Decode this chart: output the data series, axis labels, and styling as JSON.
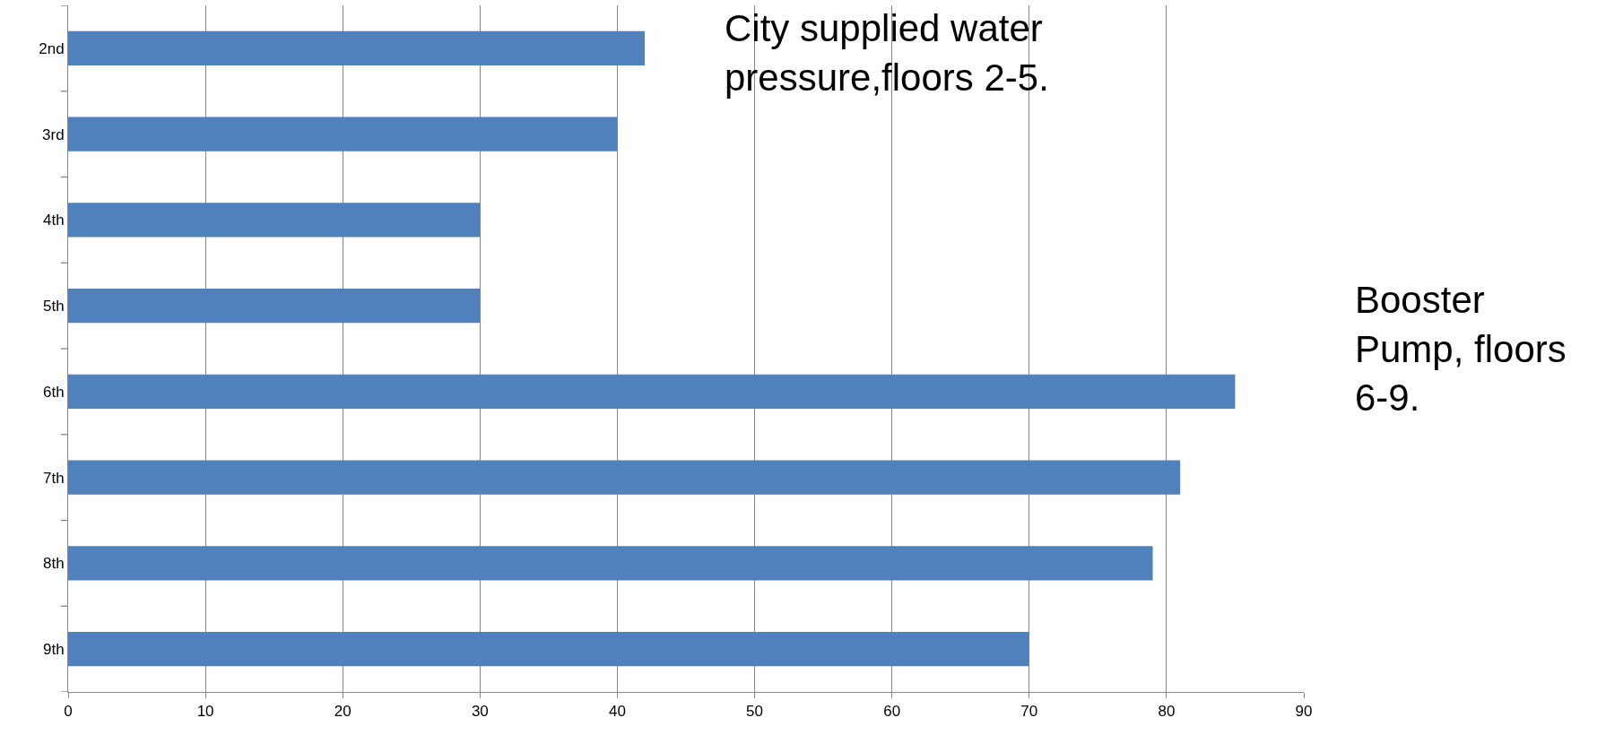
{
  "chart_data": {
    "type": "bar",
    "orientation": "horizontal",
    "categories": [
      "2nd",
      "3rd",
      "4th",
      "5th",
      "6th",
      "7th",
      "8th",
      "9th"
    ],
    "values": [
      42,
      40,
      30,
      30,
      85,
      81,
      79,
      70
    ],
    "color": "#4f81bd",
    "xlim": [
      0,
      90
    ],
    "xticks": [
      0,
      10,
      20,
      30,
      40,
      50,
      60,
      70,
      80,
      90
    ],
    "grid": "x",
    "legend": false,
    "annotations": [
      "City supplied water\npressure,floors 2-5.",
      "Booster\nPump, floors\n6-9."
    ]
  }
}
